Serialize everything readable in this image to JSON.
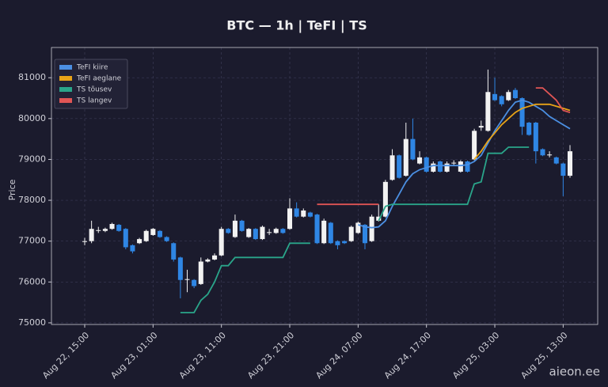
{
  "chart_data": {
    "type": "candlestick",
    "title": "BTC — 1h  |  TeFI  |  TS",
    "ylabel": "Price",
    "watermark": "aieon.ee",
    "x": [
      "Aug 22, 15:00",
      "Aug 22, 16:00",
      "Aug 22, 17:00",
      "Aug 22, 18:00",
      "Aug 22, 19:00",
      "Aug 22, 20:00",
      "Aug 22, 21:00",
      "Aug 22, 22:00",
      "Aug 22, 23:00",
      "Aug 23, 00:00",
      "Aug 23, 01:00",
      "Aug 23, 02:00",
      "Aug 23, 03:00",
      "Aug 23, 04:00",
      "Aug 23, 05:00",
      "Aug 23, 06:00",
      "Aug 23, 07:00",
      "Aug 23, 08:00",
      "Aug 23, 09:00",
      "Aug 23, 10:00",
      "Aug 23, 11:00",
      "Aug 23, 12:00",
      "Aug 23, 13:00",
      "Aug 23, 14:00",
      "Aug 23, 15:00",
      "Aug 23, 16:00",
      "Aug 23, 17:00",
      "Aug 23, 18:00",
      "Aug 23, 19:00",
      "Aug 23, 20:00",
      "Aug 23, 21:00",
      "Aug 23, 22:00",
      "Aug 23, 23:00",
      "Aug 24, 00:00",
      "Aug 24, 01:00",
      "Aug 24, 02:00",
      "Aug 24, 03:00",
      "Aug 24, 04:00",
      "Aug 24, 05:00",
      "Aug 24, 06:00",
      "Aug 24, 07:00",
      "Aug 24, 08:00",
      "Aug 24, 09:00",
      "Aug 24, 10:00",
      "Aug 24, 11:00",
      "Aug 24, 12:00",
      "Aug 24, 13:00",
      "Aug 24, 14:00",
      "Aug 24, 15:00",
      "Aug 24, 16:00",
      "Aug 24, 17:00",
      "Aug 24, 18:00",
      "Aug 24, 19:00",
      "Aug 24, 20:00",
      "Aug 24, 21:00",
      "Aug 24, 22:00",
      "Aug 24, 23:00",
      "Aug 25, 00:00",
      "Aug 25, 01:00",
      "Aug 25, 02:00",
      "Aug 25, 03:00",
      "Aug 25, 04:00",
      "Aug 25, 05:00",
      "Aug 25, 06:00",
      "Aug 25, 07:00",
      "Aug 25, 08:00",
      "Aug 25, 09:00",
      "Aug 25, 10:00",
      "Aug 25, 11:00",
      "Aug 25, 12:00",
      "Aug 25, 13:00",
      "Aug 25, 14:00"
    ],
    "open": [
      76980,
      77000,
      77250,
      77250,
      77300,
      77400,
      77300,
      76900,
      76950,
      77000,
      77150,
      77250,
      77100,
      76950,
      76600,
      76050,
      76050,
      75950,
      76500,
      76550,
      76650,
      77300,
      77100,
      77500,
      77100,
      77300,
      77050,
      77200,
      77200,
      77300,
      77300,
      77800,
      77600,
      77700,
      77650,
      76950,
      77450,
      77000,
      77000,
      77000,
      77200,
      77400,
      77000,
      77500,
      77600,
      78500,
      79100,
      78600,
      79500,
      78900,
      79050,
      78700,
      78950,
      78700,
      78900,
      78700,
      78950,
      79000,
      79780,
      79700,
      80600,
      80550,
      80450,
      80700,
      80500,
      79900,
      79900,
      79250,
      79100,
      79050,
      78900,
      78600
    ],
    "high": [
      77080,
      77500,
      77350,
      77330,
      77450,
      77420,
      77320,
      76920,
      77080,
      77280,
      77320,
      77270,
      77120,
      76970,
      76620,
      76300,
      76070,
      76600,
      76580,
      76700,
      77350,
      77320,
      77650,
      77520,
      77320,
      77320,
      77380,
      77300,
      77330,
      77320,
      78050,
      77950,
      77800,
      77720,
      77670,
      77550,
      77470,
      77020,
      77020,
      77380,
      77480,
      77420,
      77650,
      77900,
      78500,
      79250,
      79120,
      79900,
      80000,
      79200,
      79070,
      78950,
      78970,
      78950,
      78980,
      78980,
      78970,
      79750,
      79950,
      81200,
      81000,
      80570,
      80700,
      80750,
      80520,
      79920,
      79920,
      79270,
      79200,
      79070,
      78920,
      79350
    ],
    "low": [
      76900,
      76950,
      77200,
      77220,
      77280,
      77230,
      76800,
      76700,
      76930,
      76980,
      77130,
      77080,
      76980,
      76500,
      75600,
      75750,
      75850,
      75930,
      76480,
      76530,
      76630,
      77180,
      77080,
      77230,
      77080,
      77030,
      77030,
      77150,
      77180,
      77180,
      77280,
      77580,
      77580,
      77580,
      76930,
      76930,
      76930,
      76800,
      76930,
      76980,
      77180,
      76800,
      76980,
      77480,
      77580,
      78480,
      78530,
      78580,
      78980,
      78880,
      78680,
      78680,
      78680,
      78680,
      78850,
      78680,
      78680,
      78980,
      79700,
      79680,
      80430,
      80300,
      80430,
      80480,
      79600,
      79580,
      78900,
      79080,
      79050,
      78880,
      78100,
      78550
    ],
    "close": [
      77000,
      77300,
      77270,
      77300,
      77420,
      77250,
      76850,
      76750,
      77050,
      77250,
      77300,
      77100,
      77000,
      76550,
      76050,
      76070,
      75900,
      76500,
      76550,
      76650,
      77300,
      77200,
      77500,
      77250,
      77300,
      77050,
      77350,
      77220,
      77300,
      77200,
      77800,
      77600,
      77750,
      77600,
      76950,
      77500,
      76950,
      76900,
      76950,
      77350,
      77450,
      76950,
      77600,
      77600,
      78450,
      79100,
      78550,
      79500,
      79000,
      79050,
      78700,
      78900,
      78700,
      78900,
      78920,
      78950,
      78700,
      79700,
      79820,
      80650,
      80450,
      80350,
      80650,
      80500,
      79800,
      79600,
      79200,
      79100,
      79120,
      78900,
      78600,
      79200
    ],
    "up_color": "#f2f2f2",
    "down_color": "#2f86e4",
    "series": [
      {
        "name": "TeFI kiire",
        "color": "#4b8fe2",
        "values": [
          null,
          null,
          null,
          null,
          null,
          null,
          null,
          null,
          null,
          null,
          null,
          null,
          null,
          null,
          null,
          null,
          null,
          null,
          null,
          null,
          null,
          null,
          null,
          null,
          null,
          null,
          null,
          null,
          null,
          null,
          null,
          null,
          null,
          null,
          null,
          null,
          null,
          null,
          null,
          null,
          77400,
          77350,
          77330,
          77350,
          77500,
          77850,
          78150,
          78450,
          78650,
          78750,
          78800,
          78850,
          78850,
          78850,
          78850,
          78850,
          78870,
          78950,
          79100,
          79400,
          79700,
          79950,
          80200,
          80400,
          80450,
          80400,
          80300,
          80200,
          80050,
          79950,
          79850,
          79750
        ]
      },
      {
        "name": "TeFI aeglane",
        "color": "#e8a317",
        "values": [
          null,
          null,
          null,
          null,
          null,
          null,
          null,
          null,
          null,
          null,
          null,
          null,
          null,
          null,
          null,
          null,
          null,
          null,
          null,
          null,
          null,
          null,
          null,
          null,
          null,
          null,
          null,
          null,
          null,
          null,
          null,
          null,
          null,
          null,
          null,
          null,
          null,
          null,
          null,
          null,
          null,
          null,
          null,
          null,
          null,
          null,
          null,
          null,
          null,
          null,
          null,
          null,
          null,
          null,
          null,
          null,
          null,
          79000,
          79200,
          79450,
          79650,
          79850,
          80000,
          80150,
          80250,
          80300,
          80350,
          80350,
          80350,
          80300,
          80250,
          80200
        ]
      },
      {
        "name": "TS tõusev",
        "color": "#2aa58a",
        "values": [
          null,
          null,
          null,
          null,
          null,
          null,
          null,
          null,
          null,
          null,
          null,
          null,
          null,
          null,
          75250,
          75250,
          75250,
          75550,
          75700,
          76000,
          76400,
          76400,
          76600,
          76600,
          76600,
          76600,
          76600,
          76600,
          76600,
          76600,
          76950,
          76950,
          76950,
          76950,
          null,
          null,
          null,
          null,
          null,
          null,
          null,
          null,
          null,
          77500,
          77850,
          77900,
          77900,
          77900,
          77900,
          77900,
          77900,
          77900,
          77900,
          77900,
          77900,
          77900,
          77900,
          78400,
          78450,
          79150,
          79150,
          79150,
          79300,
          79300,
          79300,
          79300,
          null,
          null,
          null,
          null,
          null,
          null
        ]
      },
      {
        "name": "TS langev",
        "color": "#e05555",
        "values": [
          null,
          null,
          null,
          null,
          null,
          null,
          null,
          null,
          null,
          null,
          null,
          null,
          null,
          null,
          null,
          null,
          null,
          null,
          null,
          null,
          null,
          null,
          null,
          null,
          null,
          null,
          null,
          null,
          null,
          null,
          null,
          null,
          null,
          null,
          77900,
          77900,
          77900,
          77900,
          77900,
          77900,
          77900,
          77900,
          77900,
          77900,
          null,
          null,
          null,
          null,
          null,
          null,
          null,
          null,
          null,
          null,
          null,
          null,
          null,
          null,
          null,
          null,
          null,
          null,
          null,
          null,
          null,
          null,
          80750,
          80750,
          80600,
          80450,
          80200,
          80150
        ]
      }
    ],
    "ylim": [
      74960,
      81740
    ],
    "yticks": [
      75000,
      76000,
      77000,
      78000,
      79000,
      80000,
      81000
    ],
    "xticks": [
      "Aug 22, 15:00",
      "Aug 23, 01:00",
      "Aug 23, 11:00",
      "Aug 23, 21:00",
      "Aug 24, 07:00",
      "Aug 24, 17:00",
      "Aug 25, 03:00",
      "Aug 25, 13:00"
    ],
    "grid": true,
    "legend": "upper left"
  }
}
